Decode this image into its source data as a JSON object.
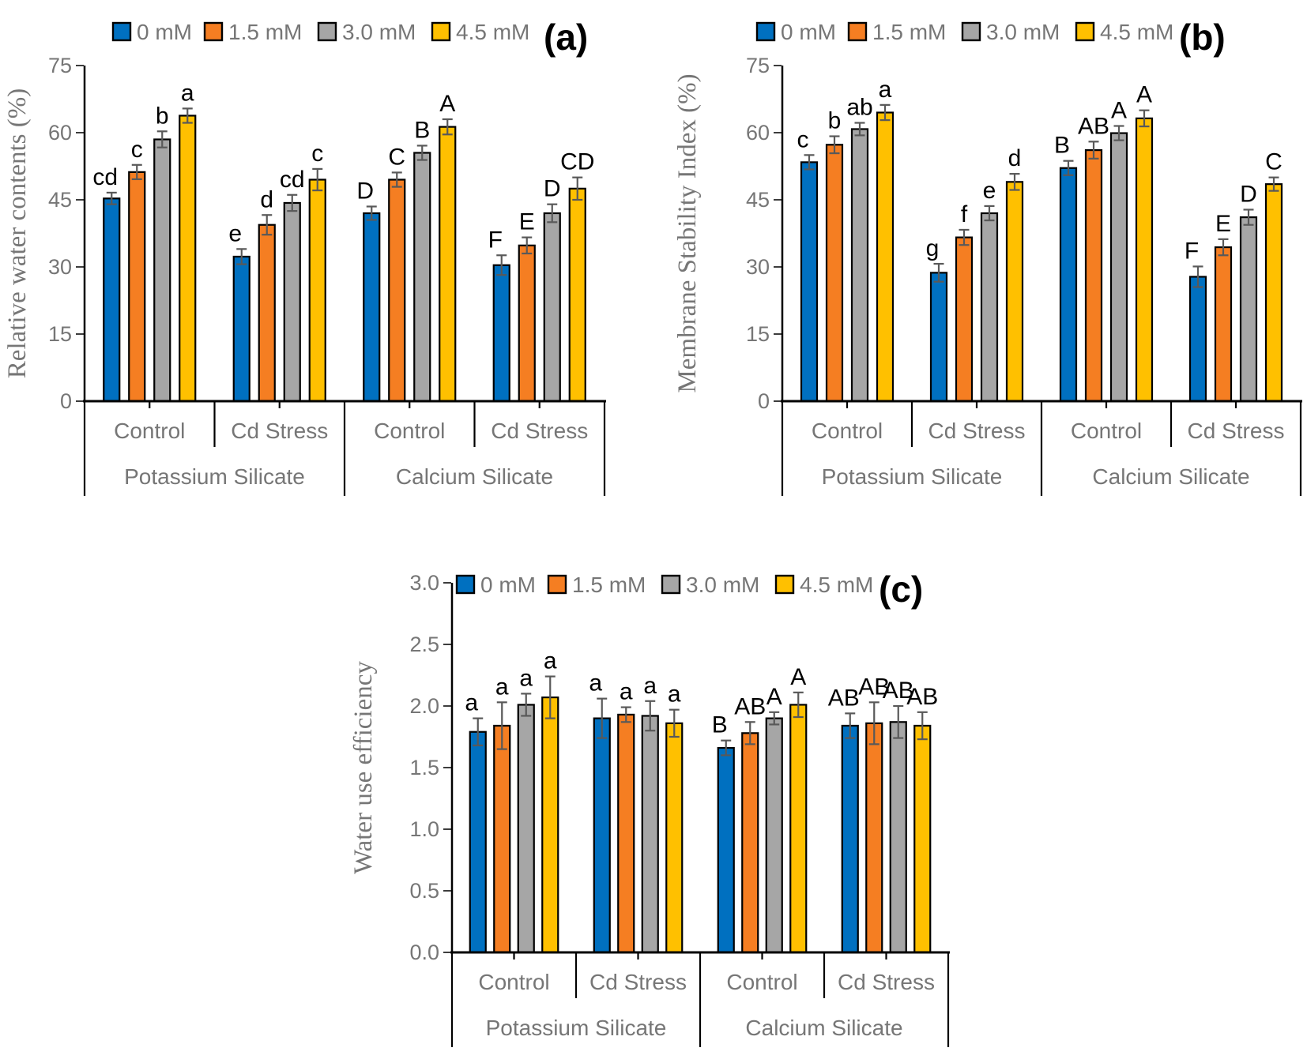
{
  "figure": {
    "background": "#FFFFFF",
    "text_color": "#767676",
    "letter_color": "#000000",
    "error_bar_color": "#595959",
    "axis_color": "#000000",
    "series_colors": [
      "#0070C0",
      "#F57E22",
      "#A6A6A6",
      "#FFC000"
    ],
    "legend_labels": [
      "0 mM",
      "1.5 mM",
      "3.0 mM",
      "4.5 mM"
    ]
  },
  "chart_data": [
    {
      "type": "bar",
      "panel_label": "(a)",
      "ylabel": "Relative water contents (%)",
      "ylim": [
        0,
        75
      ],
      "yticks": [
        0,
        15,
        30,
        45,
        60,
        75
      ],
      "ytick_labels": [
        "0",
        "15",
        "30",
        "45",
        "60",
        "75"
      ],
      "legend": [
        "0 mM",
        "1.5 mM",
        "3.0 mM",
        "4.5 mM"
      ],
      "group_labels": [
        "Control",
        "Cd Stress",
        "Control",
        "Cd Stress"
      ],
      "super_group_labels": [
        "Potassium Silicate",
        "Calcium Silicate"
      ],
      "series": [
        {
          "name": "0 mM",
          "values": [
            45.3,
            32.3,
            42.0,
            30.4
          ],
          "errors": [
            1.3,
            1.7,
            1.5,
            2.2
          ],
          "letters": [
            "cd",
            "e",
            "D",
            "F"
          ]
        },
        {
          "name": "1.5 mM",
          "values": [
            51.2,
            39.4,
            49.5,
            34.8
          ],
          "errors": [
            1.6,
            2.2,
            1.6,
            1.8
          ],
          "letters": [
            "c",
            "d",
            "C",
            "E"
          ]
        },
        {
          "name": "3.0 mM",
          "values": [
            58.5,
            44.3,
            55.5,
            42.0
          ],
          "errors": [
            1.8,
            1.8,
            1.6,
            2.0
          ],
          "letters": [
            "b",
            "cd",
            "B",
            "D"
          ]
        },
        {
          "name": "4.5 mM",
          "values": [
            63.8,
            49.5,
            61.3,
            47.5
          ],
          "errors": [
            1.6,
            2.4,
            1.7,
            2.5
          ],
          "letters": [
            "a",
            "c",
            "A",
            "CD"
          ]
        }
      ]
    },
    {
      "type": "bar",
      "panel_label": "(b)",
      "ylabel": "Membrane Stability Index (%)",
      "ylim": [
        0,
        75
      ],
      "yticks": [
        0,
        15,
        30,
        45,
        60,
        75
      ],
      "ytick_labels": [
        "0",
        "15",
        "30",
        "45",
        "60",
        "75"
      ],
      "legend": [
        "0 mM",
        "1.5 mM",
        "3.0 mM",
        "4.5 mM"
      ],
      "group_labels": [
        "Control",
        "Cd Stress",
        "Control",
        "Cd Stress"
      ],
      "super_group_labels": [
        "Potassium Silicate",
        "Calcium Silicate"
      ],
      "series": [
        {
          "name": "0 mM",
          "values": [
            53.4,
            28.7,
            52.1,
            27.8
          ],
          "errors": [
            1.6,
            2.0,
            1.6,
            2.3
          ],
          "letters": [
            "c",
            "g",
            "B",
            "F"
          ]
        },
        {
          "name": "1.5 mM",
          "values": [
            57.3,
            36.6,
            56.1,
            34.4
          ],
          "errors": [
            1.9,
            1.7,
            1.9,
            1.8
          ],
          "letters": [
            "b",
            "f",
            "AB",
            "E"
          ]
        },
        {
          "name": "3.0 mM",
          "values": [
            60.8,
            42.0,
            59.9,
            41.1
          ],
          "errors": [
            1.4,
            1.6,
            1.6,
            1.7
          ],
          "letters": [
            "ab",
            "e",
            "A",
            "D"
          ]
        },
        {
          "name": "4.5 mM",
          "values": [
            64.5,
            49.0,
            63.2,
            48.5
          ],
          "errors": [
            1.7,
            1.8,
            1.8,
            1.5
          ],
          "letters": [
            "a",
            "d",
            "A",
            "C"
          ]
        }
      ]
    },
    {
      "type": "bar",
      "panel_label": "(c)",
      "ylabel": "Water use efficiency",
      "ylim": [
        0,
        3.0
      ],
      "yticks": [
        0,
        0.5,
        1.0,
        1.5,
        2.0,
        2.5,
        3.0
      ],
      "ytick_labels": [
        "0.0",
        "0.5",
        "1.0",
        "1.5",
        "2.0",
        "2.5",
        "3.0"
      ],
      "legend": [
        "0 mM",
        "1.5 mM",
        "3.0 mM",
        "4.5 mM"
      ],
      "group_labels": [
        "Control",
        "Cd Stress",
        "Control",
        "Cd Stress"
      ],
      "super_group_labels": [
        "Potassium Silicate",
        "Calcium Silicate"
      ],
      "series": [
        {
          "name": "0 mM",
          "values": [
            1.79,
            1.9,
            1.66,
            1.84
          ],
          "errors": [
            0.11,
            0.16,
            0.06,
            0.1
          ],
          "letters": [
            "a",
            "a",
            "B",
            "AB"
          ]
        },
        {
          "name": "1.5 mM",
          "values": [
            1.84,
            1.93,
            1.78,
            1.86
          ],
          "errors": [
            0.19,
            0.06,
            0.09,
            0.17
          ],
          "letters": [
            "a",
            "a",
            "AB",
            "AB"
          ]
        },
        {
          "name": "3.0 mM",
          "values": [
            2.01,
            1.92,
            1.9,
            1.87
          ],
          "errors": [
            0.09,
            0.12,
            0.05,
            0.13
          ],
          "letters": [
            "a",
            "a",
            "A",
            "AB"
          ]
        },
        {
          "name": "4.5 mM",
          "values": [
            2.07,
            1.86,
            2.01,
            1.84
          ],
          "errors": [
            0.17,
            0.11,
            0.1,
            0.11
          ],
          "letters": [
            "a",
            "a",
            "A",
            "AB"
          ]
        }
      ]
    }
  ]
}
